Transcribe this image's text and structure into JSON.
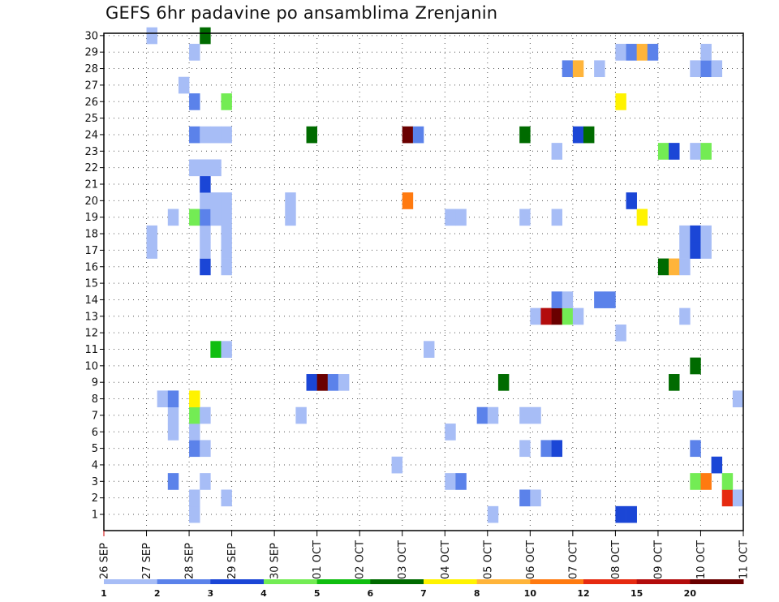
{
  "chart_data": {
    "type": "heatmap",
    "title": "GEFS 6hr padavine po ansamblima Zrenjanin",
    "y_ticks": [
      "1",
      "2",
      "3",
      "4",
      "5",
      "6",
      "7",
      "8",
      "9",
      "10",
      "11",
      "12",
      "13",
      "14",
      "15",
      "16",
      "17",
      "18",
      "19",
      "20",
      "21",
      "22",
      "23",
      "24",
      "25",
      "26",
      "27",
      "28",
      "29",
      "30"
    ],
    "ylim": [
      1,
      30
    ],
    "x_ticks": [
      "26 SEP",
      "27 SEP",
      "28 SEP",
      "29 SEP",
      "30 SEP",
      "01 OCT",
      "02 OCT",
      "03 OCT",
      "04 OCT",
      "05 OCT",
      "06 OCT",
      "07 OCT",
      "08 OCT",
      "09 OCT",
      "10 OCT",
      "11 OCT"
    ],
    "x_step": "6hr",
    "x_start": "26 SEP 00Z",
    "grid": true,
    "colorbar": {
      "labels": [
        "1",
        "2",
        "3",
        "4",
        "5",
        "6",
        "7",
        "8",
        "10",
        "12",
        "15",
        "20"
      ],
      "colors": [
        "#a7bdf6",
        "#5b82ea",
        "#1b46d6",
        "#73ec54",
        "#10be10",
        "#006b00",
        "#fff300",
        "#ffb43a",
        "#ff7a10",
        "#e62a10",
        "#b30c0c",
        "#6a0000"
      ]
    },
    "values": [
      {
        "member": 1,
        "x": "28 SEP 00Z",
        "value": 1
      },
      {
        "member": 1,
        "x": "05 OCT 00Z",
        "value": 1
      },
      {
        "member": 1,
        "x": "08 OCT 00Z",
        "value": 3
      },
      {
        "member": 1,
        "x": "08 OCT 06Z",
        "value": 3
      },
      {
        "member": 2,
        "x": "28 SEP 00Z",
        "value": 1
      },
      {
        "member": 2,
        "x": "28 SEP 18Z",
        "value": 1
      },
      {
        "member": 2,
        "x": "05 OCT 18Z",
        "value": 2
      },
      {
        "member": 2,
        "x": "06 OCT 00Z",
        "value": 1
      },
      {
        "member": 2,
        "x": "10 OCT 12Z",
        "value": 12
      },
      {
        "member": 2,
        "x": "10 OCT 18Z",
        "value": 1
      },
      {
        "member": 3,
        "x": "27 SEP 12Z",
        "value": 2
      },
      {
        "member": 3,
        "x": "28 SEP 06Z",
        "value": 1
      },
      {
        "member": 3,
        "x": "04 OCT 00Z",
        "value": 1
      },
      {
        "member": 3,
        "x": "04 OCT 06Z",
        "value": 2
      },
      {
        "member": 3,
        "x": "09 OCT 18Z",
        "value": 4
      },
      {
        "member": 3,
        "x": "10 OCT 00Z",
        "value": 10
      },
      {
        "member": 3,
        "x": "10 OCT 12Z",
        "value": 4
      },
      {
        "member": 4,
        "x": "02 OCT 18Z",
        "value": 1
      },
      {
        "member": 4,
        "x": "10 OCT 06Z",
        "value": 3
      },
      {
        "member": 5,
        "x": "28 SEP 00Z",
        "value": 2
      },
      {
        "member": 5,
        "x": "28 SEP 06Z",
        "value": 1
      },
      {
        "member": 5,
        "x": "05 OCT 18Z",
        "value": 1
      },
      {
        "member": 5,
        "x": "06 OCT 06Z",
        "value": 2
      },
      {
        "member": 5,
        "x": "06 OCT 12Z",
        "value": 3
      },
      {
        "member": 5,
        "x": "09 OCT 18Z",
        "value": 2
      },
      {
        "member": 6,
        "x": "27 SEP 12Z",
        "value": 1
      },
      {
        "member": 6,
        "x": "28 SEP 00Z",
        "value": 1
      },
      {
        "member": 6,
        "x": "04 OCT 00Z",
        "value": 1
      },
      {
        "member": 7,
        "x": "27 SEP 12Z",
        "value": 1
      },
      {
        "member": 7,
        "x": "28 SEP 00Z",
        "value": 4
      },
      {
        "member": 7,
        "x": "28 SEP 06Z",
        "value": 1
      },
      {
        "member": 7,
        "x": "30 SEP 12Z",
        "value": 1
      },
      {
        "member": 7,
        "x": "04 OCT 18Z",
        "value": 2
      },
      {
        "member": 7,
        "x": "05 OCT 00Z",
        "value": 1
      },
      {
        "member": 7,
        "x": "05 OCT 18Z",
        "value": 1
      },
      {
        "member": 7,
        "x": "06 OCT 00Z",
        "value": 1
      },
      {
        "member": 8,
        "x": "27 SEP 06Z",
        "value": 1
      },
      {
        "member": 8,
        "x": "27 SEP 12Z",
        "value": 2
      },
      {
        "member": 8,
        "x": "28 SEP 00Z",
        "value": 7
      },
      {
        "member": 8,
        "x": "10 OCT 18Z",
        "value": 1
      },
      {
        "member": 9,
        "x": "30 SEP 18Z",
        "value": 3
      },
      {
        "member": 9,
        "x": "01 OCT 00Z",
        "value": 20
      },
      {
        "member": 9,
        "x": "01 OCT 06Z",
        "value": 2
      },
      {
        "member": 9,
        "x": "01 OCT 12Z",
        "value": 1
      },
      {
        "member": 9,
        "x": "05 OCT 06Z",
        "value": 6
      },
      {
        "member": 9,
        "x": "09 OCT 06Z",
        "value": 6
      },
      {
        "member": 10,
        "x": "09 OCT 18Z",
        "value": 6
      },
      {
        "member": 11,
        "x": "28 SEP 12Z",
        "value": 5
      },
      {
        "member": 11,
        "x": "28 SEP 18Z",
        "value": 1
      },
      {
        "member": 11,
        "x": "03 OCT 12Z",
        "value": 1
      },
      {
        "member": 12,
        "x": "08 OCT 00Z",
        "value": 1
      },
      {
        "member": 13,
        "x": "06 OCT 00Z",
        "value": 1
      },
      {
        "member": 13,
        "x": "06 OCT 06Z",
        "value": 15
      },
      {
        "member": 13,
        "x": "06 OCT 12Z",
        "value": 20
      },
      {
        "member": 13,
        "x": "06 OCT 18Z",
        "value": 4
      },
      {
        "member": 13,
        "x": "07 OCT 00Z",
        "value": 1
      },
      {
        "member": 13,
        "x": "09 OCT 12Z",
        "value": 1
      },
      {
        "member": 14,
        "x": "06 OCT 12Z",
        "value": 2
      },
      {
        "member": 14,
        "x": "06 OCT 18Z",
        "value": 1
      },
      {
        "member": 14,
        "x": "07 OCT 12Z",
        "value": 2
      },
      {
        "member": 14,
        "x": "07 OCT 18Z",
        "value": 2
      },
      {
        "member": 16,
        "x": "28 SEP 06Z",
        "value": 3
      },
      {
        "member": 16,
        "x": "28 SEP 18Z",
        "value": 1
      },
      {
        "member": 16,
        "x": "09 OCT 00Z",
        "value": 6
      },
      {
        "member": 16,
        "x": "09 OCT 06Z",
        "value": 8
      },
      {
        "member": 16,
        "x": "09 OCT 12Z",
        "value": 1
      },
      {
        "member": 17,
        "x": "27 SEP 00Z",
        "value": 1
      },
      {
        "member": 17,
        "x": "28 SEP 06Z",
        "value": 1
      },
      {
        "member": 17,
        "x": "28 SEP 18Z",
        "value": 1
      },
      {
        "member": 17,
        "x": "09 OCT 12Z",
        "value": 1
      },
      {
        "member": 17,
        "x": "09 OCT 18Z",
        "value": 3
      },
      {
        "member": 17,
        "x": "10 OCT 00Z",
        "value": 1
      },
      {
        "member": 18,
        "x": "27 SEP 00Z",
        "value": 1
      },
      {
        "member": 18,
        "x": "28 SEP 06Z",
        "value": 1
      },
      {
        "member": 18,
        "x": "28 SEP 18Z",
        "value": 1
      },
      {
        "member": 18,
        "x": "09 OCT 12Z",
        "value": 1
      },
      {
        "member": 18,
        "x": "09 OCT 18Z",
        "value": 3
      },
      {
        "member": 18,
        "x": "10 OCT 00Z",
        "value": 1
      },
      {
        "member": 19,
        "x": "27 SEP 12Z",
        "value": 1
      },
      {
        "member": 19,
        "x": "28 SEP 00Z",
        "value": 4
      },
      {
        "member": 19,
        "x": "28 SEP 06Z",
        "value": 2
      },
      {
        "member": 19,
        "x": "28 SEP 12Z",
        "value": 1
      },
      {
        "member": 19,
        "x": "28 SEP 18Z",
        "value": 1
      },
      {
        "member": 19,
        "x": "30 SEP 06Z",
        "value": 1
      },
      {
        "member": 19,
        "x": "04 OCT 00Z",
        "value": 1
      },
      {
        "member": 19,
        "x": "04 OCT 06Z",
        "value": 1
      },
      {
        "member": 19,
        "x": "05 OCT 18Z",
        "value": 1
      },
      {
        "member": 19,
        "x": "06 OCT 12Z",
        "value": 1
      },
      {
        "member": 19,
        "x": "08 OCT 12Z",
        "value": 7
      },
      {
        "member": 20,
        "x": "28 SEP 06Z",
        "value": 1
      },
      {
        "member": 20,
        "x": "28 SEP 12Z",
        "value": 1
      },
      {
        "member": 20,
        "x": "28 SEP 18Z",
        "value": 1
      },
      {
        "member": 20,
        "x": "30 SEP 06Z",
        "value": 1
      },
      {
        "member": 20,
        "x": "03 OCT 00Z",
        "value": 10
      },
      {
        "member": 20,
        "x": "08 OCT 06Z",
        "value": 3
      },
      {
        "member": 21,
        "x": "28 SEP 06Z",
        "value": 3
      },
      {
        "member": 22,
        "x": "28 SEP 00Z",
        "value": 1
      },
      {
        "member": 22,
        "x": "28 SEP 06Z",
        "value": 1
      },
      {
        "member": 22,
        "x": "28 SEP 12Z",
        "value": 1
      },
      {
        "member": 23,
        "x": "06 OCT 12Z",
        "value": 1
      },
      {
        "member": 23,
        "x": "09 OCT 00Z",
        "value": 4
      },
      {
        "member": 23,
        "x": "09 OCT 06Z",
        "value": 3
      },
      {
        "member": 23,
        "x": "09 OCT 18Z",
        "value": 1
      },
      {
        "member": 23,
        "x": "10 OCT 00Z",
        "value": 4
      },
      {
        "member": 24,
        "x": "28 SEP 00Z",
        "value": 2
      },
      {
        "member": 24,
        "x": "28 SEP 06Z",
        "value": 1
      },
      {
        "member": 24,
        "x": "28 SEP 12Z",
        "value": 1
      },
      {
        "member": 24,
        "x": "28 SEP 18Z",
        "value": 1
      },
      {
        "member": 24,
        "x": "30 SEP 18Z",
        "value": 6
      },
      {
        "member": 24,
        "x": "03 OCT 00Z",
        "value": 20
      },
      {
        "member": 24,
        "x": "03 OCT 06Z",
        "value": 2
      },
      {
        "member": 24,
        "x": "05 OCT 18Z",
        "value": 6
      },
      {
        "member": 24,
        "x": "07 OCT 00Z",
        "value": 3
      },
      {
        "member": 24,
        "x": "07 OCT 06Z",
        "value": 6
      },
      {
        "member": 26,
        "x": "28 SEP 00Z",
        "value": 2
      },
      {
        "member": 26,
        "x": "28 SEP 18Z",
        "value": 4
      },
      {
        "member": 26,
        "x": "08 OCT 00Z",
        "value": 7
      },
      {
        "member": 27,
        "x": "27 SEP 18Z",
        "value": 1
      },
      {
        "member": 28,
        "x": "06 OCT 18Z",
        "value": 2
      },
      {
        "member": 28,
        "x": "07 OCT 00Z",
        "value": 8
      },
      {
        "member": 28,
        "x": "07 OCT 12Z",
        "value": 1
      },
      {
        "member": 28,
        "x": "09 OCT 18Z",
        "value": 1
      },
      {
        "member": 28,
        "x": "10 OCT 00Z",
        "value": 2
      },
      {
        "member": 28,
        "x": "10 OCT 06Z",
        "value": 1
      },
      {
        "member": 29,
        "x": "28 SEP 00Z",
        "value": 1
      },
      {
        "member": 29,
        "x": "08 OCT 00Z",
        "value": 1
      },
      {
        "member": 29,
        "x": "08 OCT 06Z",
        "value": 2
      },
      {
        "member": 29,
        "x": "08 OCT 12Z",
        "value": 8
      },
      {
        "member": 29,
        "x": "08 OCT 18Z",
        "value": 2
      },
      {
        "member": 29,
        "x": "10 OCT 00Z",
        "value": 1
      },
      {
        "member": 30,
        "x": "27 SEP 00Z",
        "value": 1
      },
      {
        "member": 30,
        "x": "28 SEP 06Z",
        "value": 6
      }
    ]
  }
}
